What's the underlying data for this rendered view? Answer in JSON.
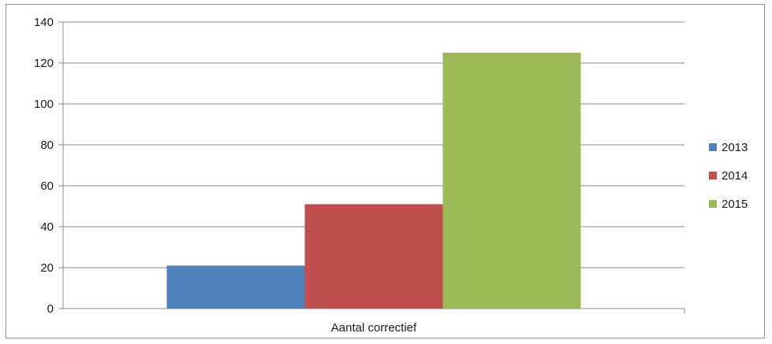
{
  "chart_data": {
    "type": "bar",
    "categories": [
      "Aantal correctief"
    ],
    "series": [
      {
        "name": "2013",
        "values": [
          21
        ],
        "color": "#4f81bd"
      },
      {
        "name": "2014",
        "values": [
          51
        ],
        "color": "#c0504d"
      },
      {
        "name": "2015",
        "values": [
          125
        ],
        "color": "#9bbb59"
      }
    ],
    "yticks": [
      "0",
      "20",
      "40",
      "60",
      "80",
      "100",
      "120",
      "140"
    ],
    "ylim": [
      0,
      140
    ],
    "grid": true,
    "legend": "right",
    "title": "",
    "xlabel": "",
    "ylabel": ""
  }
}
